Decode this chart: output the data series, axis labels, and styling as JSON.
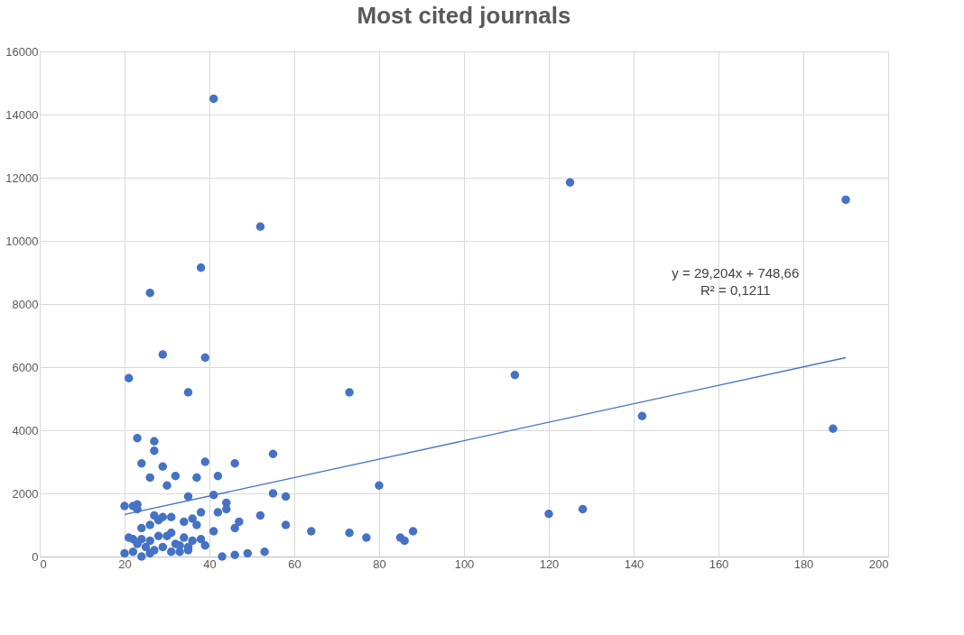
{
  "chart_data": {
    "type": "scatter",
    "title": "Most cited journals",
    "xlim": [
      0,
      200
    ],
    "xticks": [
      0,
      20,
      40,
      60,
      80,
      100,
      120,
      140,
      160,
      180,
      200
    ],
    "ylim": [
      0,
      16000
    ],
    "yticks": [
      0,
      2000,
      4000,
      6000,
      8000,
      10000,
      12000,
      14000,
      16000
    ],
    "grid": true,
    "marker": "circle",
    "annotations": [
      "y = 29,204x + 748,66",
      "R² = 0,1211"
    ],
    "series": [
      {
        "color": "#4472c4",
        "x": [
          41,
          125,
          190,
          52,
          38,
          26,
          29,
          39,
          21,
          35,
          73,
          112,
          142,
          187,
          80,
          120,
          128,
          23,
          27,
          27,
          24,
          29,
          39,
          26,
          30,
          32,
          37,
          42,
          46,
          55,
          35,
          41,
          55,
          58,
          44,
          44,
          38,
          20,
          22,
          23,
          23,
          27,
          29,
          31,
          34,
          36,
          42,
          47,
          52,
          46,
          58,
          64,
          73,
          77,
          85,
          86,
          88,
          24,
          26,
          28,
          22,
          24,
          26,
          30,
          31,
          34,
          36,
          38,
          41,
          33,
          35,
          39,
          20,
          22,
          24,
          25,
          26,
          27,
          29,
          31,
          33,
          35,
          43,
          46,
          49,
          53,
          21,
          23,
          32,
          28,
          37
        ],
        "values": [
          14500,
          11850,
          11300,
          10450,
          9150,
          8350,
          6400,
          6300,
          5650,
          5200,
          5200,
          5750,
          4450,
          4050,
          2250,
          1350,
          1500,
          3750,
          3650,
          3350,
          2950,
          2850,
          3000,
          2500,
          2250,
          2550,
          2500,
          2550,
          2950,
          3250,
          1900,
          1950,
          2000,
          1900,
          1700,
          1500,
          1400,
          1600,
          1600,
          1650,
          1500,
          1300,
          1250,
          1250,
          1100,
          1200,
          1400,
          1100,
          1300,
          900,
          1000,
          800,
          750,
          600,
          600,
          500,
          800,
          900,
          1000,
          650,
          550,
          550,
          500,
          650,
          750,
          600,
          500,
          550,
          800,
          350,
          300,
          350,
          100,
          150,
          0,
          300,
          100,
          200,
          300,
          150,
          150,
          200,
          0,
          50,
          100,
          150,
          600,
          400,
          400,
          1150,
          1000
        ]
      },
      {
        "type": "line",
        "marker": "none",
        "color": "#4472c4",
        "x": [
          20,
          190
        ],
        "values": [
          1330,
          6300
        ]
      }
    ]
  }
}
